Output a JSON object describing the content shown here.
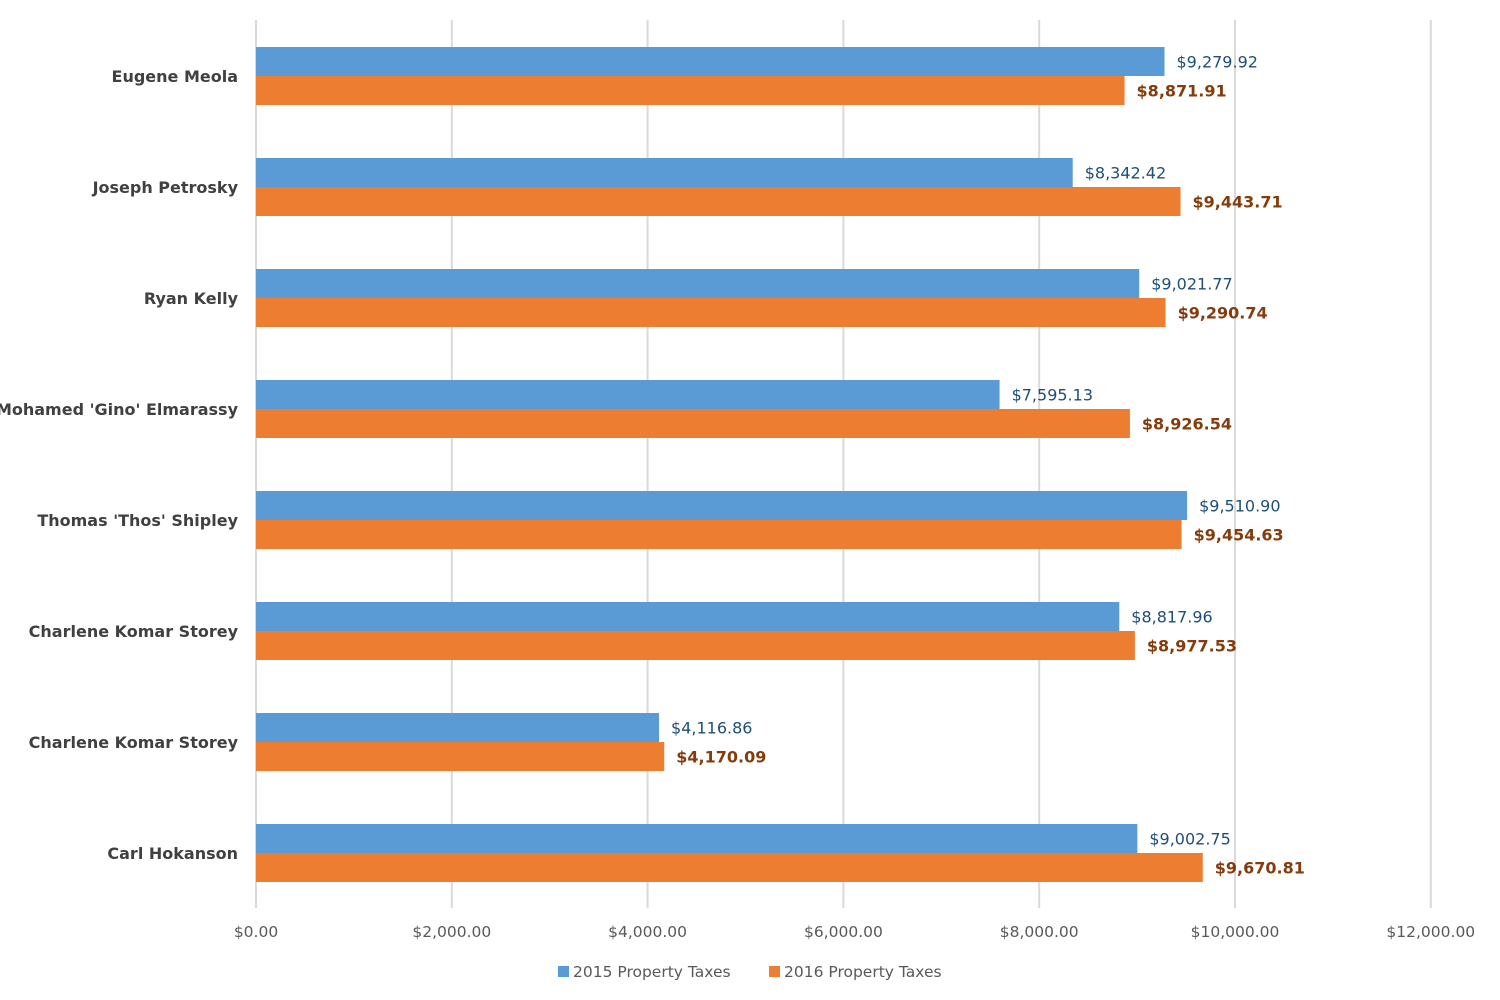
{
  "chart_data": {
    "type": "bar",
    "orientation": "horizontal",
    "categories": [
      "Eugene Meola",
      "Joseph Petrosky",
      "Ryan Kelly",
      "Mohamed 'Gino' Elmarassy",
      "Thomas 'Thos' Shipley",
      "Charlene Komar Storey",
      "Charlene Komar Storey",
      "Carl Hokanson"
    ],
    "series": [
      {
        "name": "2015 Property Taxes",
        "color": "#5b9bd5",
        "values": [
          9279.92,
          8342.42,
          9021.77,
          7595.13,
          9510.9,
          8817.96,
          4116.86,
          9002.75
        ],
        "labels": [
          "$9,279.92",
          "$8,342.42",
          "$9,021.77",
          "$7,595.13",
          "$9,510.90",
          "$8,817.96",
          "$4,116.86",
          "$9,002.75"
        ]
      },
      {
        "name": "2016 Property Taxes",
        "color": "#ed7d31",
        "values": [
          8871.91,
          9443.71,
          9290.74,
          8926.54,
          9454.63,
          8977.53,
          4170.09,
          9670.81
        ],
        "labels": [
          "$8,871.91",
          "$9,443.71",
          "$9,290.74",
          "$8,926.54",
          "$9,454.63",
          "$8,977.53",
          "$4,170.09",
          "$9,670.81"
        ]
      }
    ],
    "xlim": [
      0,
      12000
    ],
    "xticks": [
      0,
      2000,
      4000,
      6000,
      8000,
      10000,
      12000
    ],
    "xtick_labels": [
      "$0.00",
      "$2,000.00",
      "$4,000.00",
      "$6,000.00",
      "$8,000.00",
      "$10,000.00",
      "$12,000.00"
    ],
    "grid": "vertical",
    "legend": "bottom-center",
    "title": "",
    "xlabel": "",
    "ylabel": ""
  }
}
